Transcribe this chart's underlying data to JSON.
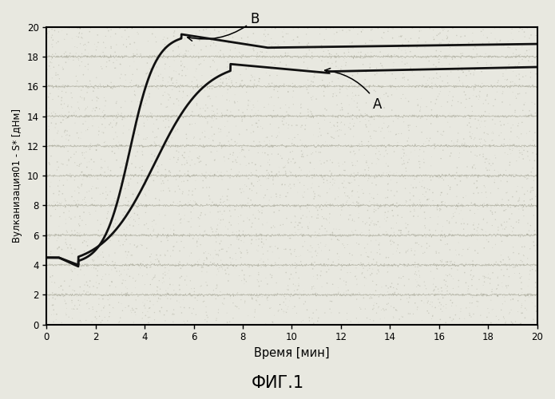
{
  "title": "ФИГ.1",
  "xlabel": "Время [мин]",
  "ylabel": "Вулканизация01 - S* [дНм]",
  "xlim": [
    0,
    20
  ],
  "ylim": [
    0,
    20
  ],
  "xticks": [
    0,
    2,
    4,
    6,
    8,
    10,
    12,
    14,
    16,
    18,
    20
  ],
  "yticks": [
    0,
    2,
    4,
    6,
    8,
    10,
    12,
    14,
    16,
    18,
    20
  ],
  "label_B": "В",
  "label_A": "А",
  "line_color": "#111111",
  "background_color": "#e8e8e0",
  "grid_color": "#999988"
}
